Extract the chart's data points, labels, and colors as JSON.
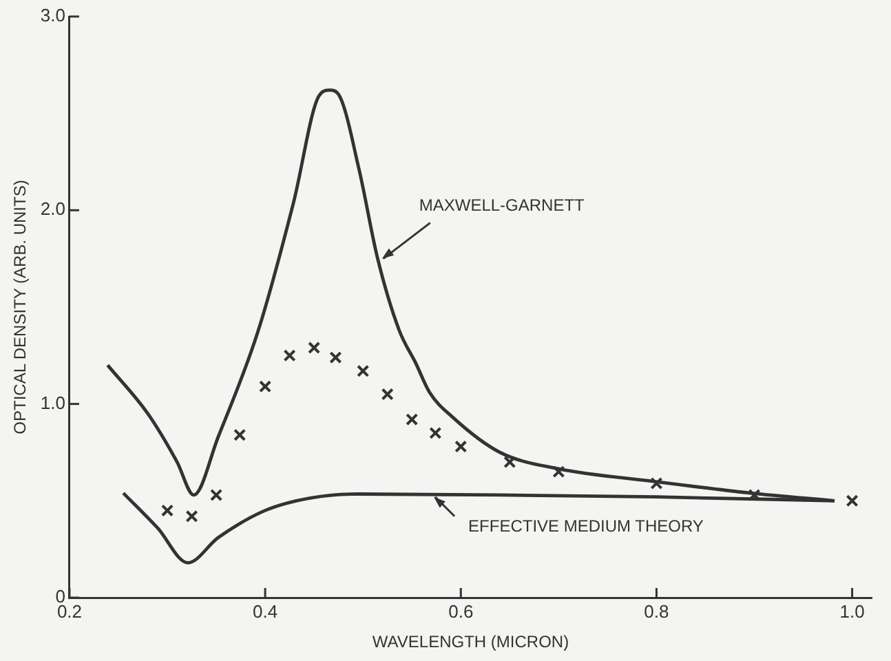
{
  "chart_data": {
    "type": "line",
    "xlabel": "WAVELENGTH (MICRON)",
    "ylabel": "OPTICAL DENSITY (ARB. UNITS)",
    "xlim": [
      0.2,
      1.02
    ],
    "xticks": [
      0.2,
      0.4,
      0.6,
      0.8,
      {
        "value": 1.0,
        "label": "1.0"
      }
    ],
    "ylim": [
      0,
      3
    ],
    "yticks": [
      0,
      {
        "value": 1,
        "label": "1.0"
      },
      {
        "value": 2,
        "label": "2.0"
      },
      {
        "value": 3,
        "label": "3.0"
      }
    ],
    "grid": false,
    "legend": false,
    "line_style": "solid",
    "marker": "none",
    "series": [
      {
        "color": "#333333",
        "x": [
          0.239,
          0.28,
          0.31,
          0.327,
          0.352,
          0.393,
          0.429,
          0.455,
          0.466,
          0.476,
          0.496,
          0.515,
          0.537,
          0.554,
          0.568,
          0.592,
          0.64,
          0.7,
          0.797,
          0.896,
          0.982
        ],
        "values": [
          1.2,
          0.95,
          0.7,
          0.53,
          0.83,
          1.38,
          2.04,
          2.59,
          2.62,
          2.59,
          2.21,
          1.75,
          1.38,
          1.21,
          1.06,
          0.93,
          0.75,
          0.665,
          0.6,
          0.54,
          0.5
        ]
      },
      {
        "color": "#333333",
        "x": [
          0.255,
          0.29,
          0.321,
          0.352,
          0.4,
          0.447,
          0.496,
          0.64,
          0.8,
          0.982
        ],
        "values": [
          0.54,
          0.36,
          0.18,
          0.31,
          0.45,
          0.515,
          0.535,
          0.53,
          0.52,
          0.5
        ]
      },
      {
        "type": "scatter",
        "color": "#333333",
        "marker": "cross",
        "x": [
          0.3,
          0.325,
          0.35,
          0.374,
          0.4,
          0.425,
          0.45,
          0.472,
          0.5,
          0.525,
          0.55,
          0.574,
          0.6,
          0.65,
          0.7,
          0.8,
          0.9,
          1.0
        ],
        "values": [
          0.45,
          0.42,
          0.53,
          0.84,
          1.09,
          1.25,
          1.29,
          1.24,
          1.17,
          1.05,
          0.92,
          0.85,
          0.78,
          0.7,
          0.65,
          0.59,
          0.53,
          0.5
        ]
      }
    ],
    "annotations": [
      {
        "text": "MAXWELL-GARNETT",
        "x": 0.518,
        "y": 1.75
      },
      {
        "text": "EFFECTIVE MEDIUM THEORY",
        "x": 0.571,
        "y": 0.52
      }
    ]
  }
}
